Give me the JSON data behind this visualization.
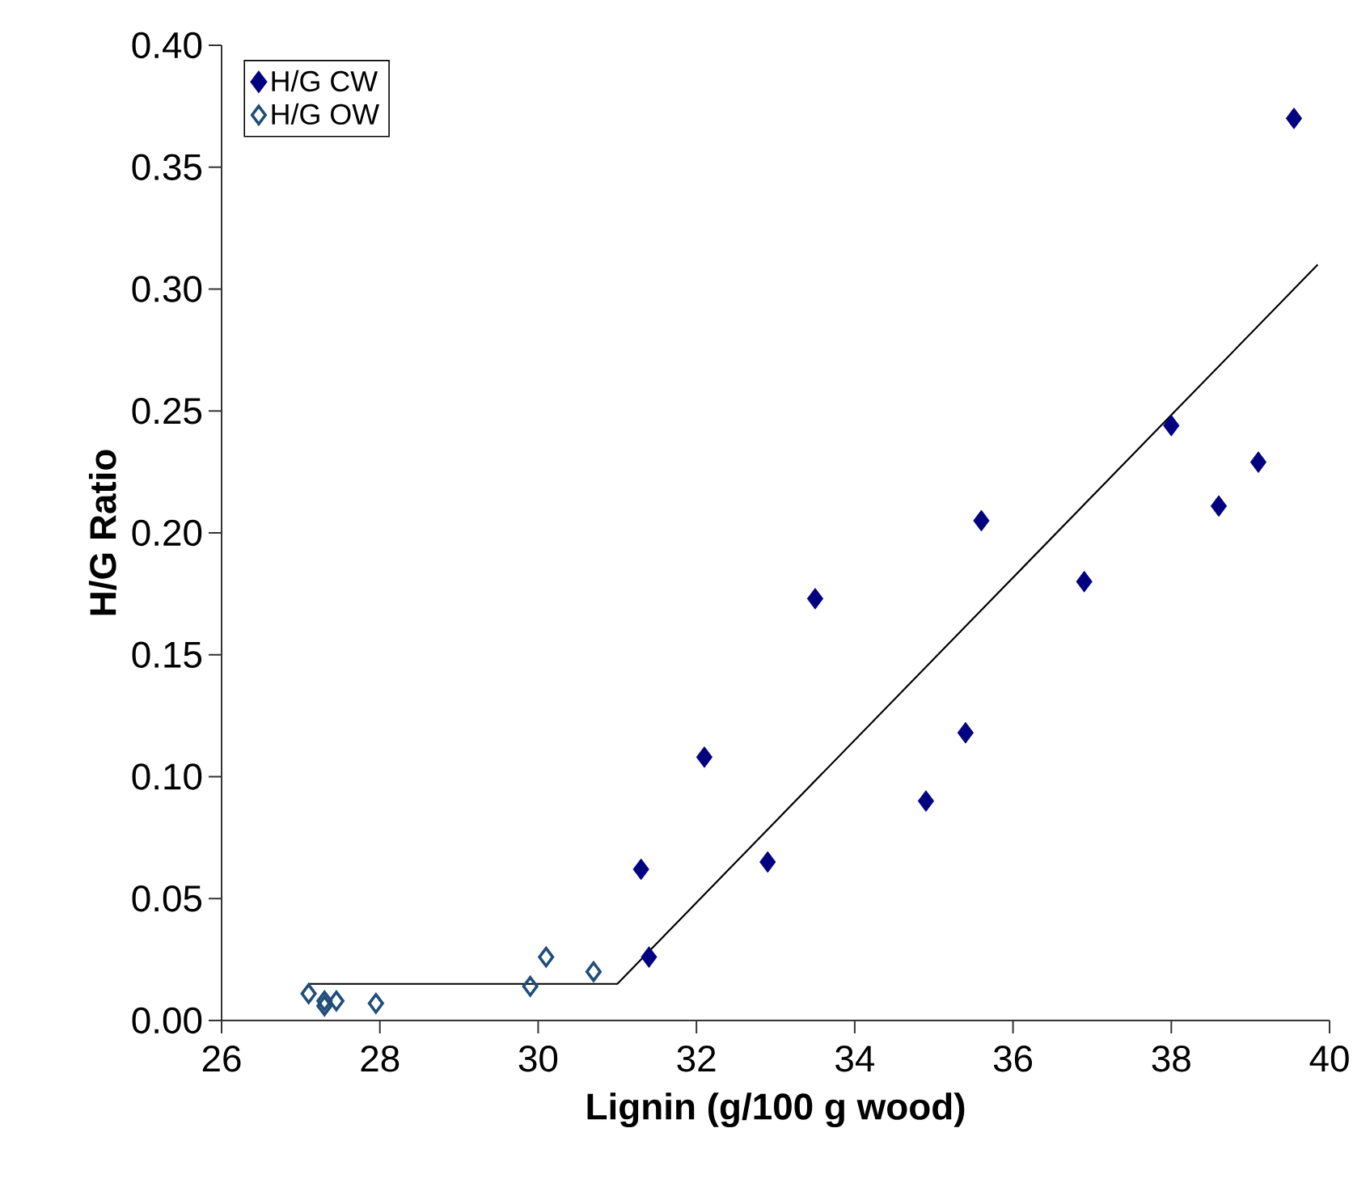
{
  "chart_data": {
    "type": "scatter",
    "xlabel": "Lignin (g/100 g wood)",
    "ylabel": "H/G Ratio",
    "xlim": [
      26,
      40
    ],
    "xticks": [
      26,
      28,
      30,
      32,
      34,
      36,
      38,
      40
    ],
    "ylim": [
      0,
      0.4
    ],
    "yticks": [
      {
        "value": 0,
        "label": "0.00"
      },
      {
        "value": 0.05,
        "label": "0.05"
      },
      {
        "value": 0.1,
        "label": "0.10"
      },
      {
        "value": 0.15,
        "label": "0.15"
      },
      {
        "value": 0.2,
        "label": "0.20"
      },
      {
        "value": 0.25,
        "label": "0.25"
      },
      {
        "value": 0.3,
        "label": "0.30"
      },
      {
        "value": 0.35,
        "label": "0.35"
      },
      {
        "value": 0.4,
        "label": "0.40"
      }
    ],
    "grid": false,
    "legend": "top left",
    "marker": "diamond",
    "series": [
      {
        "name": "H/G CW",
        "color": "#000080",
        "x": [
          31.3,
          31.4,
          32.1,
          32.9,
          33.5,
          34.9,
          35.4,
          35.6,
          36.9,
          38.0,
          38.6,
          39.1,
          39.55
        ],
        "values": [
          0.062,
          0.026,
          0.108,
          0.065,
          0.173,
          0.09,
          0.118,
          0.205,
          0.18,
          0.244,
          0.211,
          0.229,
          0.37
        ]
      },
      {
        "name": "H/G OW",
        "color": "#1f4e79",
        "marker": "diamond-open",
        "x": [
          27.1,
          27.3,
          27.3,
          27.45,
          27.95,
          29.9,
          30.1,
          30.7
        ],
        "values": [
          0.011,
          0.006,
          0.008,
          0.008,
          0.007,
          0.014,
          0.026,
          0.02
        ]
      },
      {
        "type": "line",
        "color": "#000000",
        "marker": "none",
        "x": [
          27.1,
          31.0,
          39.85
        ],
        "values": [
          0.015,
          0.015,
          0.31
        ]
      }
    ]
  }
}
